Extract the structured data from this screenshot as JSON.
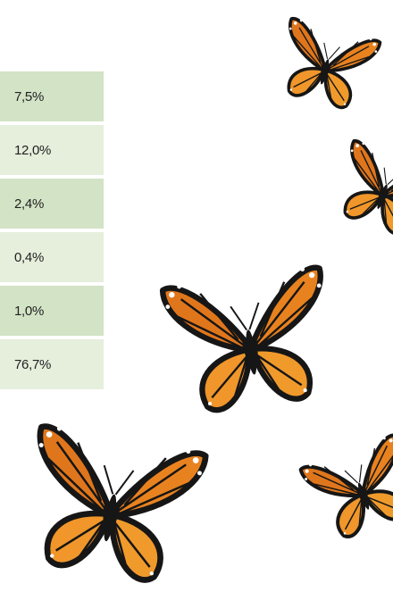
{
  "table": {
    "rows": [
      "7,5%",
      "12,0%",
      "2,4%",
      "0,4%",
      "1,0%",
      "76,7%"
    ]
  }
}
